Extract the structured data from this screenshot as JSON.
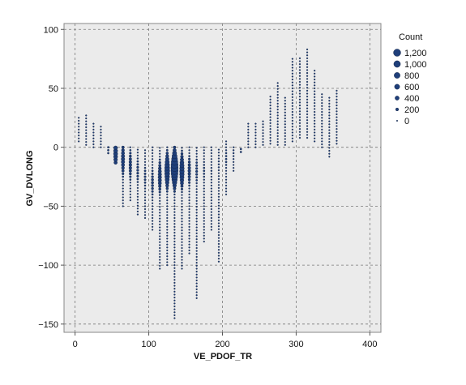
{
  "chart_data": {
    "type": "scatter",
    "title": "",
    "xlabel": "VE_PDOF_TR",
    "ylabel": "GV_DVLONG",
    "xlim": [
      -15,
      415
    ],
    "ylim": [
      -157,
      105
    ],
    "x_ticks": [
      0,
      100,
      200,
      300,
      400
    ],
    "y_ticks": [
      100,
      50,
      0,
      -50,
      -100,
      -150
    ],
    "x_tick_labels": [
      "0",
      "100",
      "200",
      "300",
      "400"
    ],
    "y_tick_labels": [
      "100",
      "50",
      "0",
      "−50",
      "−100",
      "−150"
    ],
    "grid": true,
    "size_variable": "Count",
    "legend": {
      "title": "Count",
      "position": "right",
      "entries": [
        {
          "label": "1,200",
          "value": 1200
        },
        {
          "label": "1,000",
          "value": 1000
        },
        {
          "label": "800",
          "value": 800
        },
        {
          "label": "600",
          "value": 600
        },
        {
          "label": "400",
          "value": 400
        },
        {
          "label": "200",
          "value": 200
        },
        {
          "label": "0",
          "value": 0
        }
      ]
    },
    "marker_color": "#1f3f7a",
    "background_color": "#ebebeb",
    "columns": [
      {
        "x": 5,
        "y_min": 5,
        "y_max": 27,
        "peak_y": 10,
        "peak_count": 20
      },
      {
        "x": 15,
        "y_min": 2,
        "y_max": 27,
        "peak_y": 8,
        "peak_count": 20
      },
      {
        "x": 25,
        "y_min": 0,
        "y_max": 20,
        "peak_y": 5,
        "peak_count": 20
      },
      {
        "x": 35,
        "y_min": 0,
        "y_max": 18,
        "peak_y": 3,
        "peak_count": 20
      },
      {
        "x": 45,
        "y_min": -5,
        "y_max": 0,
        "peak_y": -2,
        "peak_count": 80
      },
      {
        "x": 55,
        "y_min": -13,
        "y_max": 0,
        "peak_y": -5,
        "peak_count": 400
      },
      {
        "x": 65,
        "y_min": -50,
        "y_max": 0,
        "peak_y": -10,
        "peak_count": 300
      },
      {
        "x": 75,
        "y_min": -45,
        "y_max": 0,
        "peak_y": -15,
        "peak_count": 200
      },
      {
        "x": 85,
        "y_min": -57,
        "y_max": -2,
        "peak_y": -20,
        "peak_count": 120
      },
      {
        "x": 95,
        "y_min": -60,
        "y_max": -2,
        "peak_y": -25,
        "peak_count": 100
      },
      {
        "x": 105,
        "y_min": -70,
        "y_max": 0,
        "peak_y": -30,
        "peak_count": 150
      },
      {
        "x": 115,
        "y_min": -103,
        "y_max": 0,
        "peak_y": -25,
        "peak_count": 300
      },
      {
        "x": 125,
        "y_min": -100,
        "y_max": 0,
        "peak_y": -20,
        "peak_count": 600
      },
      {
        "x": 135,
        "y_min": -145,
        "y_max": 0,
        "peak_y": -18,
        "peak_count": 1200
      },
      {
        "x": 145,
        "y_min": -103,
        "y_max": 0,
        "peak_y": -20,
        "peak_count": 500
      },
      {
        "x": 155,
        "y_min": -90,
        "y_max": 0,
        "peak_y": -20,
        "peak_count": 200
      },
      {
        "x": 165,
        "y_min": -128,
        "y_max": 0,
        "peak_y": -20,
        "peak_count": 120
      },
      {
        "x": 175,
        "y_min": -80,
        "y_max": 0,
        "peak_y": -20,
        "peak_count": 80
      },
      {
        "x": 185,
        "y_min": -70,
        "y_max": 0,
        "peak_y": -20,
        "peak_count": 60
      },
      {
        "x": 195,
        "y_min": -97,
        "y_max": 0,
        "peak_y": -15,
        "peak_count": 60
      },
      {
        "x": 205,
        "y_min": -40,
        "y_max": 5,
        "peak_y": -10,
        "peak_count": 80
      },
      {
        "x": 215,
        "y_min": -20,
        "y_max": 0,
        "peak_y": -5,
        "peak_count": 60
      },
      {
        "x": 225,
        "y_min": -4,
        "y_max": 0,
        "peak_y": -2,
        "peak_count": 80
      },
      {
        "x": 235,
        "y_min": 0,
        "y_max": 20,
        "peak_y": 5,
        "peak_count": 20
      },
      {
        "x": 245,
        "y_min": 0,
        "y_max": 22,
        "peak_y": 5,
        "peak_count": 15
      },
      {
        "x": 255,
        "y_min": 2,
        "y_max": 23,
        "peak_y": 8,
        "peak_count": 15
      },
      {
        "x": 265,
        "y_min": 3,
        "y_max": 43,
        "peak_y": 10,
        "peak_count": 15
      },
      {
        "x": 275,
        "y_min": 2,
        "y_max": 55,
        "peak_y": 10,
        "peak_count": 15
      },
      {
        "x": 285,
        "y_min": 2,
        "y_max": 43,
        "peak_y": 10,
        "peak_count": 15
      },
      {
        "x": 295,
        "y_min": 5,
        "y_max": 75,
        "peak_y": 15,
        "peak_count": 20
      },
      {
        "x": 305,
        "y_min": 8,
        "y_max": 77,
        "peak_y": 20,
        "peak_count": 20
      },
      {
        "x": 315,
        "y_min": 8,
        "y_max": 84,
        "peak_y": 25,
        "peak_count": 30
      },
      {
        "x": 325,
        "y_min": 5,
        "y_max": 65,
        "peak_y": 20,
        "peak_count": 20
      },
      {
        "x": 335,
        "y_min": 0,
        "y_max": 45,
        "peak_y": 15,
        "peak_count": 20
      },
      {
        "x": 345,
        "y_min": -8,
        "y_max": 44,
        "peak_y": 12,
        "peak_count": 15
      },
      {
        "x": 355,
        "y_min": 3,
        "y_max": 48,
        "peak_y": 12,
        "peak_count": 15
      }
    ]
  }
}
